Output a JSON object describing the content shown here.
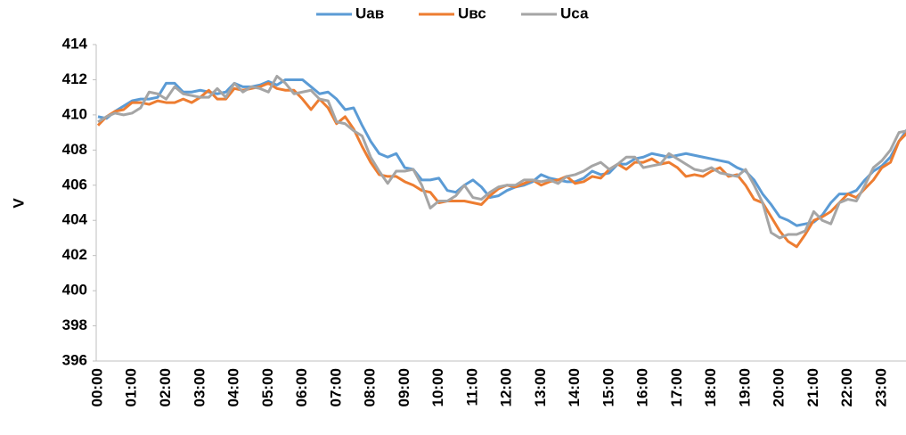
{
  "chart_data": {
    "type": "line",
    "y_label": "V",
    "legend": "top",
    "grid": false,
    "categories": [
      "00:00",
      null,
      null,
      null,
      "01:00",
      null,
      null,
      null,
      "02:00",
      null,
      null,
      null,
      "03:00",
      null,
      null,
      null,
      "04:00",
      null,
      null,
      null,
      "05:00",
      null,
      null,
      null,
      "06:00",
      null,
      null,
      null,
      "07:00",
      null,
      null,
      null,
      "08:00",
      null,
      null,
      null,
      "09:00",
      null,
      null,
      null,
      "10:00",
      null,
      null,
      null,
      "11:00",
      null,
      null,
      null,
      "12:00",
      null,
      null,
      null,
      "13:00",
      null,
      null,
      null,
      "14:00",
      null,
      null,
      null,
      "15:00",
      null,
      null,
      null,
      "16:00",
      null,
      null,
      null,
      "17:00",
      null,
      null,
      null,
      "18:00",
      null,
      null,
      null,
      "19:00",
      null,
      null,
      null,
      "20:00",
      null,
      null,
      null,
      "21:00",
      null,
      null,
      null,
      "22:00",
      null,
      null,
      null,
      "23:00",
      null,
      null,
      null
    ],
    "ylim": [
      396,
      414
    ],
    "yticks": [
      396,
      398,
      400,
      402,
      404,
      406,
      408,
      410,
      412,
      414
    ],
    "series": [
      {
        "name": "Uав",
        "color": "#5b9bd5",
        "values": [
          409.9,
          409.8,
          410.2,
          410.5,
          410.8,
          410.9,
          410.9,
          411.0,
          411.8,
          411.8,
          411.3,
          411.3,
          411.4,
          411.3,
          411.2,
          411.3,
          411.8,
          411.6,
          411.6,
          411.7,
          411.9,
          411.7,
          412.0,
          412.0,
          412.0,
          411.6,
          411.2,
          411.3,
          410.9,
          410.3,
          410.4,
          409.4,
          408.5,
          407.8,
          407.6,
          407.8,
          407.0,
          406.9,
          406.3,
          406.3,
          406.4,
          405.7,
          405.6,
          406.0,
          406.3,
          405.9,
          405.3,
          405.4,
          405.7,
          405.9,
          406.0,
          406.2,
          406.6,
          406.4,
          406.3,
          406.2,
          406.2,
          406.4,
          406.8,
          406.6,
          406.7,
          407.2,
          407.2,
          407.5,
          407.6,
          407.8,
          407.7,
          407.6,
          407.7,
          407.8,
          407.7,
          407.6,
          407.5,
          407.4,
          407.3,
          407.0,
          406.8,
          406.3,
          405.5,
          404.9,
          404.2,
          404.0,
          403.7,
          403.8,
          403.9,
          404.3,
          405.0,
          405.5,
          405.5,
          405.7,
          406.3,
          406.8,
          407.1,
          407.6,
          408.5,
          409.2
        ]
      },
      {
        "name": "Uвс",
        "color": "#ed7d31",
        "values": [
          409.4,
          409.9,
          410.2,
          410.3,
          410.7,
          410.7,
          410.6,
          410.8,
          410.7,
          410.7,
          410.9,
          410.7,
          411.0,
          411.4,
          410.9,
          410.9,
          411.5,
          411.4,
          411.5,
          411.6,
          411.8,
          411.5,
          411.4,
          411.4,
          410.9,
          410.3,
          410.9,
          410.4,
          409.5,
          409.9,
          409.2,
          408.2,
          407.3,
          406.6,
          406.5,
          406.5,
          406.2,
          406.0,
          405.7,
          405.6,
          405.0,
          405.1,
          405.1,
          405.1,
          405.0,
          404.9,
          405.4,
          405.8,
          406.0,
          405.9,
          406.1,
          406.3,
          406.0,
          406.2,
          406.3,
          406.5,
          406.1,
          406.2,
          406.5,
          406.4,
          406.9,
          407.2,
          406.9,
          407.3,
          407.3,
          407.5,
          407.2,
          407.3,
          407.0,
          406.5,
          406.6,
          406.5,
          406.8,
          407.0,
          406.5,
          406.6,
          406.0,
          405.2,
          405.0,
          404.2,
          403.4,
          402.8,
          402.5,
          403.2,
          404.0,
          404.2,
          404.5,
          405.0,
          405.5,
          405.3,
          405.8,
          406.3,
          407.0,
          407.3,
          408.5,
          409.0
        ]
      },
      {
        "name": "Uса",
        "color": "#a5a5a5",
        "values": [
          409.6,
          409.9,
          410.1,
          410.0,
          410.1,
          410.4,
          411.3,
          411.2,
          410.9,
          411.6,
          411.2,
          411.1,
          411.0,
          411.0,
          411.5,
          411.0,
          411.8,
          411.3,
          411.6,
          411.5,
          411.3,
          412.2,
          411.8,
          411.2,
          411.3,
          411.4,
          410.9,
          410.8,
          409.6,
          409.5,
          409.1,
          408.8,
          407.6,
          406.8,
          406.1,
          406.8,
          406.8,
          406.9,
          406.0,
          404.7,
          405.1,
          405.1,
          405.4,
          406.0,
          405.3,
          405.2,
          405.6,
          405.9,
          406.0,
          406.0,
          406.3,
          406.3,
          406.2,
          406.3,
          406.1,
          406.5,
          406.6,
          406.8,
          407.1,
          407.3,
          406.9,
          407.2,
          407.6,
          407.6,
          407.0,
          407.1,
          407.2,
          407.8,
          407.5,
          407.2,
          406.9,
          406.8,
          407.0,
          406.7,
          406.6,
          406.5,
          406.9,
          406.0,
          405.0,
          403.3,
          403.0,
          403.2,
          403.2,
          403.4,
          404.5,
          404.0,
          403.8,
          405.0,
          405.2,
          405.1,
          406.0,
          407.0,
          407.4,
          408.0,
          409.0,
          409.1
        ]
      }
    ]
  }
}
